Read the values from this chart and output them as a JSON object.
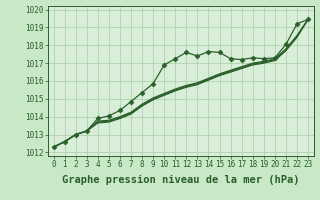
{
  "title": "Graphe pression niveau de la mer (hPa)",
  "background_color": "#c8e8c8",
  "plot_bg_color": "#d8eed8",
  "grid_color": "#a8cca8",
  "line_color": "#2a5f2a",
  "xlim": [
    -0.5,
    23.5
  ],
  "ylim": [
    1011.8,
    1020.2
  ],
  "xtick_labels": [
    "0",
    "1",
    "2",
    "3",
    "4",
    "5",
    "6",
    "7",
    "8",
    "9",
    "10",
    "11",
    "12",
    "13",
    "14",
    "15",
    "16",
    "17",
    "18",
    "19",
    "20",
    "21",
    "22",
    "23"
  ],
  "xticks": [
    0,
    1,
    2,
    3,
    4,
    5,
    6,
    7,
    8,
    9,
    10,
    11,
    12,
    13,
    14,
    15,
    16,
    17,
    18,
    19,
    20,
    21,
    22,
    23
  ],
  "yticks": [
    1012,
    1013,
    1014,
    1015,
    1016,
    1017,
    1018,
    1019,
    1020
  ],
  "series": [
    [
      1012.3,
      1012.6,
      1013.0,
      1013.2,
      1013.9,
      1014.05,
      1014.35,
      1014.85,
      1015.35,
      1015.85,
      1016.9,
      1017.25,
      1017.6,
      1017.4,
      1017.65,
      1017.6,
      1017.25,
      1017.2,
      1017.3,
      1017.25,
      1017.3,
      1018.05,
      1019.2,
      1019.45
    ],
    [
      1012.3,
      1012.6,
      1013.0,
      1013.2,
      1013.75,
      1013.8,
      1014.0,
      1014.25,
      1014.7,
      1015.05,
      1015.3,
      1015.55,
      1015.75,
      1015.9,
      1016.15,
      1016.4,
      1016.6,
      1016.8,
      1017.0,
      1017.1,
      1017.25,
      1017.8,
      1018.55,
      1019.45
    ],
    [
      1012.3,
      1012.6,
      1013.0,
      1013.2,
      1013.7,
      1013.75,
      1013.95,
      1014.2,
      1014.65,
      1015.0,
      1015.25,
      1015.5,
      1015.7,
      1015.85,
      1016.1,
      1016.35,
      1016.55,
      1016.75,
      1016.95,
      1017.05,
      1017.2,
      1017.75,
      1018.5,
      1019.45
    ],
    [
      1012.3,
      1012.6,
      1013.0,
      1013.2,
      1013.65,
      1013.7,
      1013.9,
      1014.15,
      1014.6,
      1014.95,
      1015.2,
      1015.45,
      1015.65,
      1015.8,
      1016.05,
      1016.3,
      1016.5,
      1016.7,
      1016.9,
      1017.0,
      1017.15,
      1017.7,
      1018.45,
      1019.45
    ]
  ],
  "has_markers": [
    true,
    false,
    false,
    false
  ],
  "marker": "D",
  "markersize": 2.5,
  "linewidth": 0.9,
  "title_fontsize": 7.5,
  "tick_fontsize": 5.5
}
